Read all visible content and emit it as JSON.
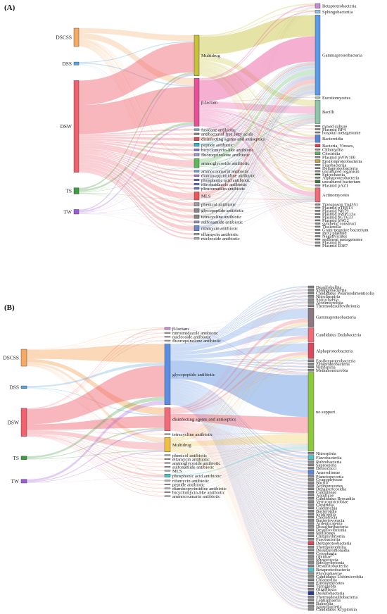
{
  "panels": [
    {
      "id": "A",
      "label": "(A)",
      "sources": [
        {
          "name": "DSCSS",
          "color": "#f5a962",
          "size": 6
        },
        {
          "name": "DSS",
          "color": "#5aa5de",
          "size": 1
        },
        {
          "name": "DSW",
          "color": "#f0606d",
          "size": 30
        },
        {
          "name": "TS",
          "color": "#3f9b3f",
          "size": 2
        },
        {
          "name": "TW",
          "color": "#a05cd6",
          "size": 1.5
        }
      ],
      "middle": [
        {
          "name": "Multidrug",
          "color": "#c8c23a",
          "size": 11
        },
        {
          "name": "β-lactam",
          "color": "#e8509a",
          "size": 13
        },
        {
          "name": "fusidane antibiotic",
          "color": "#7aa0c8",
          "size": 0.5
        },
        {
          "name": "antibacterial free fatty acids",
          "color": "#8c8c8c",
          "size": 0.5
        },
        {
          "name": "disinfecting agents and antiseptics",
          "color": "#d05050",
          "size": 0.9
        },
        {
          "name": "peptide antibiotic",
          "color": "#3cb4c8",
          "size": 0.9
        },
        {
          "name": "bicyclomycin-like antibiotic",
          "color": "#7c6cc8",
          "size": 0.5
        },
        {
          "name": "fluoroquinolone antibiotic",
          "color": "#a0a0d0",
          "size": 0.8
        },
        {
          "name": "aminoglycoside antibiotic",
          "color": "#5cb85c",
          "size": 2.5
        },
        {
          "name": "aminocoumarin antibiotic",
          "color": "#6a9bd1",
          "size": 0.5
        },
        {
          "name": "diaminopyrimidine antibiotic",
          "color": "#a07ac8",
          "size": 0.5
        },
        {
          "name": "phosphonic acid antibiotic",
          "color": "#6c6cb4",
          "size": 0.5
        },
        {
          "name": "nitroimidazole antibiotic",
          "color": "#5878b8",
          "size": 0.5
        },
        {
          "name": "pleuromutilin antibiotic",
          "color": "#5878b8",
          "size": 0.5
        },
        {
          "name": "MLS",
          "color": "#e85858",
          "size": 2.2
        },
        {
          "name": "phenicol antibiotic",
          "color": "#a0a0a0",
          "size": 1
        },
        {
          "name": "glycopeptide antibiotic",
          "color": "#888888",
          "size": 1
        },
        {
          "name": "tetracycline antibiotic",
          "color": "#888888",
          "size": 1
        },
        {
          "name": "sulfonamide antibiotic",
          "color": "#8e8ebc",
          "size": 0.6
        },
        {
          "name": "rifamycin antibiotic",
          "color": "#6c8cc8",
          "size": 1.4
        },
        {
          "name": "elfamycin antibiotic",
          "color": "#aaaaaa",
          "size": 0.5
        },
        {
          "name": "nucleoside antibiotic",
          "color": "#aaaaaa",
          "size": 0.5
        }
      ],
      "targets": [
        {
          "name": "Betaproteobacteria",
          "color": "#c58ad8",
          "size": 1
        },
        {
          "name": "Sphingobacteriia",
          "color": "#9bc0e6",
          "size": 0.7
        },
        {
          "name": "Gammaproteobacteria",
          "color": "#5b9be8",
          "size": 17
        },
        {
          "name": "Eurotiomycetes",
          "color": "#8dc6a8",
          "size": 0.3
        },
        {
          "name": "Bacilli",
          "color": "#8dc6a8",
          "size": 5
        },
        {
          "name": "mixed culture",
          "color": "#888888",
          "size": 0.3
        },
        {
          "name": "Plasmid RP4",
          "color": "#888888",
          "size": 0.3
        },
        {
          "name": "hospital metagenome",
          "color": "#888888",
          "size": 0.3
        },
        {
          "name": "Bacteroidia",
          "color": "#5b86d6",
          "size": 1.6
        },
        {
          "name": "Bacteria, Viruses,",
          "color": "#e03c55",
          "size": 0.6
        },
        {
          "name": "Chlamydiia",
          "color": "#888888",
          "size": 0.3
        },
        {
          "name": "Clostridia",
          "color": "#5ab55a",
          "size": 0.6
        },
        {
          "name": "Plasmid pWW100",
          "color": "#888888",
          "size": 0.3
        },
        {
          "name": "Epsilonproteobacteria",
          "color": "#c8a040",
          "size": 0.6
        },
        {
          "name": "Fusobacteriia",
          "color": "#888888",
          "size": 0.3
        },
        {
          "name": "Deltaproteobacteria",
          "color": "#888888",
          "size": 0.3
        },
        {
          "name": "uncultured organism",
          "color": "#888888",
          "size": 0.3
        },
        {
          "name": "Spirochaetia",
          "color": "#3a6d2c",
          "size": 0.3
        },
        {
          "name": "Alphaproteobacteria",
          "color": "#888888",
          "size": 0.3
        },
        {
          "name": "uncultured bacterium",
          "color": "#3c7a3c",
          "size": 0.6
        },
        {
          "name": "Plasmid pAZ1",
          "color": "#888888",
          "size": 0.3
        },
        {
          "name": "Actinomycetes",
          "color": "#f06a78",
          "size": 3
        },
        {
          "name": "Transposon Tn4551",
          "color": "#888888",
          "size": 0.3
        },
        {
          "name": "Plasmid pTB913",
          "color": "#888888",
          "size": 0.3
        },
        {
          "name": "Plasmid NR79",
          "color": "#888888",
          "size": 0.3
        },
        {
          "name": "Plasmid pWP113a",
          "color": "#888888",
          "size": 0.3
        },
        {
          "name": "Plasmid pGT633",
          "color": "#888888",
          "size": 0.3
        },
        {
          "name": "Plasmid pNG2",
          "color": "#888888",
          "size": 0.3
        },
        {
          "name": "synthetic construct",
          "color": "#888888",
          "size": 0.3
        },
        {
          "name": "Tissierella",
          "color": "#888888",
          "size": 0.3
        },
        {
          "name": "Gram-negative bacterium",
          "color": "#888888",
          "size": 0.3
        },
        {
          "name": "IncQ plasmid",
          "color": "#888888",
          "size": 0.3
        },
        {
          "name": "Negativicutes",
          "color": "#888888",
          "size": 0.3
        },
        {
          "name": "sediment metagenome",
          "color": "#888888",
          "size": 0.3
        },
        {
          "name": "Plasmid R",
          "color": "#888888",
          "size": 0.3
        },
        {
          "name": "Plasmid R387",
          "color": "#888888",
          "size": 0.3
        }
      ]
    },
    {
      "id": "B",
      "label": "(B)",
      "sources": [
        {
          "name": "DSCSS",
          "color": "#f5a962",
          "size": 9
        },
        {
          "name": "DSS",
          "color": "#5aa5de",
          "size": 1.4
        },
        {
          "name": "DSW",
          "color": "#f0606d",
          "size": 15
        },
        {
          "name": "TS",
          "color": "#3f9b3f",
          "size": 1.8
        },
        {
          "name": "TW",
          "color": "#a05cd6",
          "size": 2
        }
      ],
      "middle": [
        {
          "name": "β-lactam",
          "color": "#c58ad8",
          "size": 0.6
        },
        {
          "name": "nitroimidazole antibiotic",
          "color": "#aaaaaa",
          "size": 0.2
        },
        {
          "name": "nucleoside antibiotic",
          "color": "#aaaaaa",
          "size": 0.2
        },
        {
          "name": "fluoroquinolone antibiotic",
          "color": "#aaaaaa",
          "size": 0.2
        },
        {
          "name": "glycopeptide antibiotic",
          "color": "#5b8de0",
          "size": 17
        },
        {
          "name": "disinfecting agents and antiseptics",
          "color": "#f06a78",
          "size": 6.5
        },
        {
          "name": "tetracycline antibiotic",
          "color": "#aaaaaa",
          "size": 0.3
        },
        {
          "name": "Multidrug",
          "color": "#f0c040",
          "size": 4
        },
        {
          "name": "phenicol antibiotic",
          "color": "#aaaaaa",
          "size": 0.3
        },
        {
          "name": "elfamycin antibiotic",
          "color": "#aaaaaa",
          "size": 0.2
        },
        {
          "name": "aminoglycoside antibiotic",
          "color": "#aaaaaa",
          "size": 0.2
        },
        {
          "name": "sulfonamide antibiotic",
          "color": "#aaaaaa",
          "size": 0.2
        },
        {
          "name": "MLS",
          "color": "#aaaaaa",
          "size": 0.3
        },
        {
          "name": "phosphonic acid antibiotic",
          "color": "#4cc4c8",
          "size": 0.9
        },
        {
          "name": "rifamycin antibiotic",
          "color": "#aaaaaa",
          "size": 0.2
        },
        {
          "name": "peptide antibiotic",
          "color": "#aaaaaa",
          "size": 0.2
        },
        {
          "name": "diaminopyrimidine antibiotic",
          "color": "#aaaaaa",
          "size": 0.2
        },
        {
          "name": "bicyclomycin-like antibiotic",
          "color": "#aaaaaa",
          "size": 0.2
        },
        {
          "name": "aminocoumarin antibiotic",
          "color": "#aaaaaa",
          "size": 0.2
        }
      ],
      "targets": [
        {
          "name": "Desulfobulbia",
          "color": "#888888",
          "size": 0.3
        },
        {
          "name": "Sphingobacteriia",
          "color": "#888888",
          "size": 0.3
        },
        {
          "name": "Candidatus Polarisedimenticolia",
          "color": "#888888",
          "size": 0.3
        },
        {
          "name": "Nitrolinspiria",
          "color": "#888888",
          "size": 0.3
        },
        {
          "name": "Spirochaetia",
          "color": "#888888",
          "size": 0.3
        },
        {
          "name": "Acidimicrobiia",
          "color": "#888888",
          "size": 0.3
        },
        {
          "name": "Thermodesulfovibrionia",
          "color": "#888888",
          "size": 0.3
        },
        {
          "name": "Gammaproteobacteria",
          "color": "#8c7a82",
          "size": 2.6
        },
        {
          "name": "Candidatus Dadabacteria",
          "color": "#f06a78",
          "size": 2
        },
        {
          "name": "Alphaproteobacteria",
          "color": "#d84a5c",
          "size": 2.2
        },
        {
          "name": "Epsilonproteobacteria",
          "color": "#888888",
          "size": 0.3
        },
        {
          "name": "Zetaproteobacteria",
          "color": "#888888",
          "size": 0.3
        },
        {
          "name": "Nitrospiria",
          "color": "#888888",
          "size": 0.3
        },
        {
          "name": "Methanomicrobia",
          "color": "#888888",
          "size": 0.3
        },
        {
          "name": "no support",
          "color": "#8cc83c",
          "size": 11
        },
        {
          "name": "Nitrospinia",
          "color": "#888888",
          "size": 0.3
        },
        {
          "name": "Flavobacteriia",
          "color": "#4cc4c8",
          "size": 0.6
        },
        {
          "name": "Rubrobacteria",
          "color": "#888888",
          "size": 0.3
        },
        {
          "name": "Saprospiria",
          "color": "#888888",
          "size": 0.3
        },
        {
          "name": "Deinococci",
          "color": "#888888",
          "size": 0.3
        },
        {
          "name": "Anaerolineae",
          "color": "#5b86d6",
          "size": 0.6
        },
        {
          "name": "Planctomycetia",
          "color": "#888888",
          "size": 0.3
        },
        {
          "name": "Cyanophyceae",
          "color": "#888888",
          "size": 0.3
        },
        {
          "name": "Bacilli",
          "color": "#888888",
          "size": 0.3
        },
        {
          "name": "Actinomycetes",
          "color": "#888888",
          "size": 0.3
        },
        {
          "name": "Dehalococcoidia",
          "color": "#888888",
          "size": 0.3
        },
        {
          "name": "Caldilineae",
          "color": "#888888",
          "size": 0.3
        },
        {
          "name": "Aquificae",
          "color": "#888888",
          "size": 0.3
        },
        {
          "name": "Candidatus Brocadiia",
          "color": "#888888",
          "size": 0.3
        },
        {
          "name": "Verrucomicrobiae",
          "color": "#888888",
          "size": 0.3
        },
        {
          "name": "Clostridia",
          "color": "#888888",
          "size": 0.3
        },
        {
          "name": "Calditrichia",
          "color": "#888888",
          "size": 0.3
        },
        {
          "name": "Bacteroidia",
          "color": "#888888",
          "size": 0.3
        },
        {
          "name": "Syntrophia",
          "color": "#888888",
          "size": 0.3
        },
        {
          "name": "Caldisericia",
          "color": "#888888",
          "size": 0.3
        },
        {
          "name": "Bacteriovoracia",
          "color": "#888888",
          "size": 0.3
        },
        {
          "name": "Ardenticatenia",
          "color": "#888888",
          "size": 0.3
        },
        {
          "name": "Dissulfuribacteria",
          "color": "#888888",
          "size": 0.3
        },
        {
          "name": "Desulfovibrionia",
          "color": "#888888",
          "size": 0.3
        },
        {
          "name": "Mollicutes",
          "color": "#888888",
          "size": 0.3
        },
        {
          "name": "Chitinivibrionia",
          "color": "#888888",
          "size": 0.3
        },
        {
          "name": "Fusobacteriia",
          "color": "#888888",
          "size": 0.3
        },
        {
          "name": "Deltaproteobacteria",
          "color": "#d84a5c",
          "size": 0.5
        },
        {
          "name": "Thermoleophilia",
          "color": "#888888",
          "size": 0.3
        },
        {
          "name": "Desulfuromonadia",
          "color": "#888888",
          "size": 0.3
        },
        {
          "name": "Cytophagia",
          "color": "#888888",
          "size": 0.3
        },
        {
          "name": "Opitutae",
          "color": "#888888",
          "size": 0.3
        },
        {
          "name": "Myxococcia",
          "color": "#888888",
          "size": 0.3
        },
        {
          "name": "Bdellovibrionia",
          "color": "#888888",
          "size": 0.3
        },
        {
          "name": "Desulfitobacteriia",
          "color": "#888888",
          "size": 0.3
        },
        {
          "name": "Betaproteobacteria",
          "color": "#4cc4c8",
          "size": 0.5
        },
        {
          "name": "Phycisphaerae",
          "color": "#888888",
          "size": 0.3
        },
        {
          "name": "Candidatus Uabimicrobiia",
          "color": "#888888",
          "size": 0.3
        },
        {
          "name": "Chlamydiia",
          "color": "#888888",
          "size": 0.3
        },
        {
          "name": "Eurotiomycetes",
          "color": "#888888",
          "size": 0.3
        },
        {
          "name": "Terriglobia",
          "color": "#888888",
          "size": 0.3
        },
        {
          "name": "Oligoflexia",
          "color": "#888888",
          "size": 0.3
        },
        {
          "name": "Desulfobacteria",
          "color": "#2c3c8c",
          "size": 0.5
        },
        {
          "name": "Thermodesulfobacteria",
          "color": "#888888",
          "size": 0.3
        },
        {
          "name": "Lentisphaeria",
          "color": "#888888",
          "size": 0.3
        },
        {
          "name": "Balneolia",
          "color": "#888888",
          "size": 0.3
        },
        {
          "name": "Ignavibacteria",
          "color": "#888888",
          "size": 0.3
        },
        {
          "name": "Candidatus Kryptoniia",
          "color": "#888888",
          "size": 0.3
        }
      ]
    }
  ]
}
